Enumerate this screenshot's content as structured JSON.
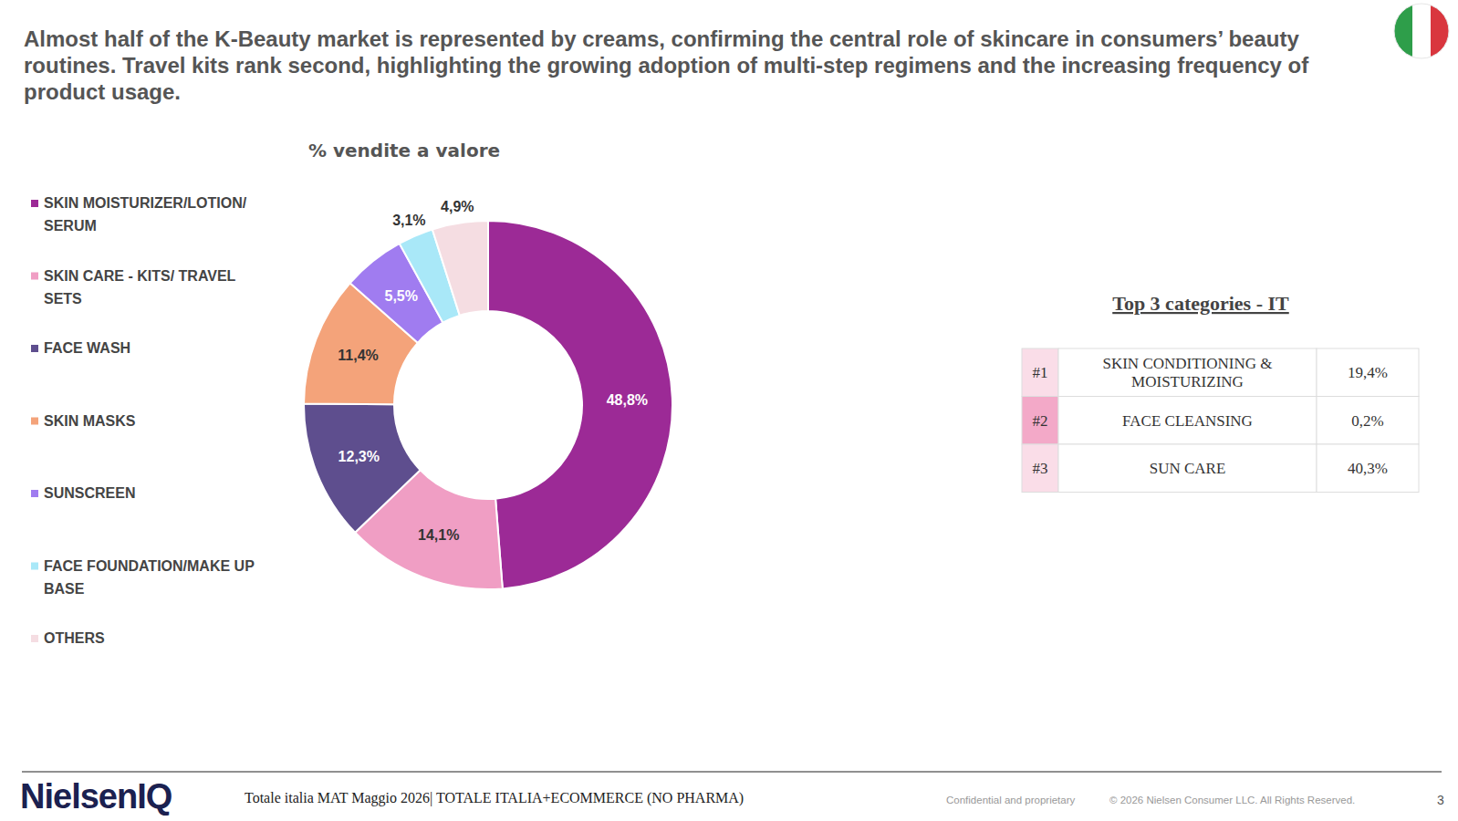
{
  "header": {
    "title": "Almost half of the K-Beauty market is represented by creams, confirming the central role of skincare in consumers’ beauty routines. Travel kits rank second, highlighting the growing adoption of multi-step regimens and the increasing frequency of product usage."
  },
  "chart_data": {
    "type": "donut",
    "title": "% vendite a valore",
    "categories": [
      "SKIN MOISTURIZER/LOTION/SERUM",
      "SKIN CARE - KITS/ TRAVEL SETS",
      "FACE WASH",
      "SKIN MASKS",
      "SUNSCREEN",
      "FACE FOUNDATION/MAKE UP BASE",
      "OTHERS"
    ],
    "values": [
      48.8,
      14.1,
      12.3,
      11.4,
      5.5,
      3.1,
      4.9
    ],
    "value_labels": [
      "48,8%",
      "14,1%",
      "12,3%",
      "11,4%",
      "5,5%",
      "3,1%",
      "4,9%"
    ],
    "colors": [
      "#9c2a96",
      "#f09ec4",
      "#5e4e8e",
      "#f4a37a",
      "#a07cf0",
      "#a9e8f8",
      "#f5dde2"
    ],
    "legend": "left",
    "data_labels": true
  },
  "table": {
    "title": "Top 3 categories - IT",
    "rows": [
      [
        "#1",
        "SKIN CONDITIONING & MOISTURIZING",
        "19,4%"
      ],
      [
        "#2",
        "FACE CLEANSING",
        "0,2%"
      ],
      [
        "#3",
        "SUN CARE",
        "40,3%"
      ]
    ]
  },
  "footer": {
    "logo": "NielsenIQ",
    "source": "Totale italia MAT Maggio 2026| TOTALE ITALIA+ECOMMERCE (NO PHARMA)",
    "confidential": "Confidential and proprietary",
    "copyright": "© 2026 Nielsen Consumer LLC. All Rights Reserved.",
    "page": "3"
  }
}
